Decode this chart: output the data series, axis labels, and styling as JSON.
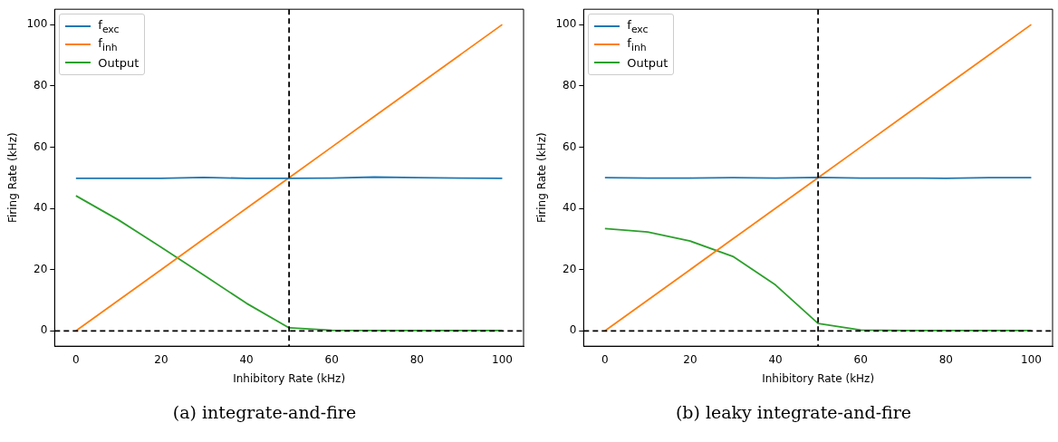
{
  "chart_data": [
    {
      "type": "line",
      "xlabel": "Inhibitory Rate (kHz)",
      "ylabel": "Firing Rate (kHz)",
      "annotations": [
        "(a) integrate-and-fire"
      ],
      "x": [
        0,
        10,
        20,
        30,
        40,
        50,
        60,
        70,
        80,
        90,
        100
      ],
      "xlim": [
        -5,
        105
      ],
      "ylim": [
        -5,
        105
      ],
      "xticks": [
        0,
        20,
        40,
        60,
        80,
        100
      ],
      "yticks": [
        0,
        20,
        40,
        60,
        80,
        100
      ],
      "grid": false,
      "legend": "top left",
      "series": [
        {
          "name": "f$_{exc}$",
          "color": "#1f77b4",
          "values": [
            49.8,
            49.8,
            49.8,
            50.1,
            49.8,
            49.8,
            49.9,
            50.2,
            50.0,
            49.9,
            49.8
          ]
        },
        {
          "name": "f$_{inh}$",
          "color": "#ff7f0e",
          "values": [
            0,
            10,
            20,
            30,
            40,
            50,
            60,
            70,
            80,
            90,
            100
          ]
        },
        {
          "name": "Output",
          "color": "#2ca02c",
          "values": [
            44.1,
            36.2,
            27.3,
            18.2,
            9.0,
            1.0,
            0.2,
            0.1,
            0.1,
            0.1,
            0.1
          ]
        }
      ],
      "ref_lines": [
        {
          "axis": "x",
          "value": 50,
          "color": "#000000",
          "line_style": "dashed"
        },
        {
          "axis": "y",
          "value": 0,
          "color": "#000000",
          "line_style": "dashed"
        }
      ]
    },
    {
      "type": "line",
      "xlabel": "Inhibitory Rate (kHz)",
      "ylabel": "Firing Rate (kHz)",
      "annotations": [
        "(b) leaky integrate-and-fire"
      ],
      "x": [
        0,
        10,
        20,
        30,
        40,
        50,
        60,
        70,
        80,
        90,
        100
      ],
      "xlim": [
        -5,
        105
      ],
      "ylim": [
        -5,
        105
      ],
      "xticks": [
        0,
        20,
        40,
        60,
        80,
        100
      ],
      "yticks": [
        0,
        20,
        40,
        60,
        80,
        100
      ],
      "grid": false,
      "legend": "top left",
      "series": [
        {
          "name": "f$_{exc}$",
          "color": "#1f77b4",
          "values": [
            50.0,
            49.9,
            49.9,
            50.0,
            49.9,
            50.1,
            49.9,
            49.9,
            49.8,
            50.0,
            50.0
          ]
        },
        {
          "name": "f$_{inh}$",
          "color": "#ff7f0e",
          "values": [
            0,
            10,
            20,
            30,
            40,
            50,
            60,
            70,
            80,
            90,
            100
          ]
        },
        {
          "name": "Output",
          "color": "#2ca02c",
          "values": [
            33.4,
            32.3,
            29.3,
            24.3,
            15.0,
            2.4,
            0.3,
            0.1,
            0.1,
            0.1,
            0.1
          ]
        }
      ],
      "ref_lines": [
        {
          "axis": "x",
          "value": 50,
          "color": "#000000",
          "line_style": "dashed"
        },
        {
          "axis": "y",
          "value": 0,
          "color": "#000000",
          "line_style": "dashed"
        }
      ]
    }
  ]
}
